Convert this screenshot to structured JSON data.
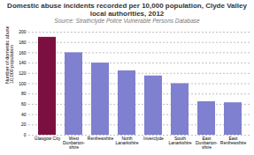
{
  "chart_data": {
    "type": "bar",
    "title": "Domestic abuse incidents recorded per 10,000 population, Clyde Valley local authorities, 2012",
    "subtitle": "Source: Strathclyde Police Vulnerable Persons Database",
    "categories": [
      "Glasgow City",
      "West\nDunbarton-\nshire",
      "Renfrewshire",
      "North\nLanarkshire",
      "Inverclyde",
      "South\nLanarkshire",
      "East\nDunbarton-\nshire",
      "East\nRenfrewshire"
    ],
    "values": [
      190,
      160,
      140,
      125,
      115,
      100,
      65,
      63
    ],
    "colors": [
      "#7b1040",
      "#8080d0",
      "#8080d0",
      "#8080d0",
      "#8080d0",
      "#8080d0",
      "#8080d0",
      "#8080d0"
    ],
    "ylabel": "Number of domestic abuse incidents per 10,000 population",
    "ylim": [
      0,
      200
    ],
    "yticks": [
      0,
      20,
      40,
      60,
      80,
      100,
      120,
      140,
      160,
      180,
      200
    ],
    "grid": true
  }
}
